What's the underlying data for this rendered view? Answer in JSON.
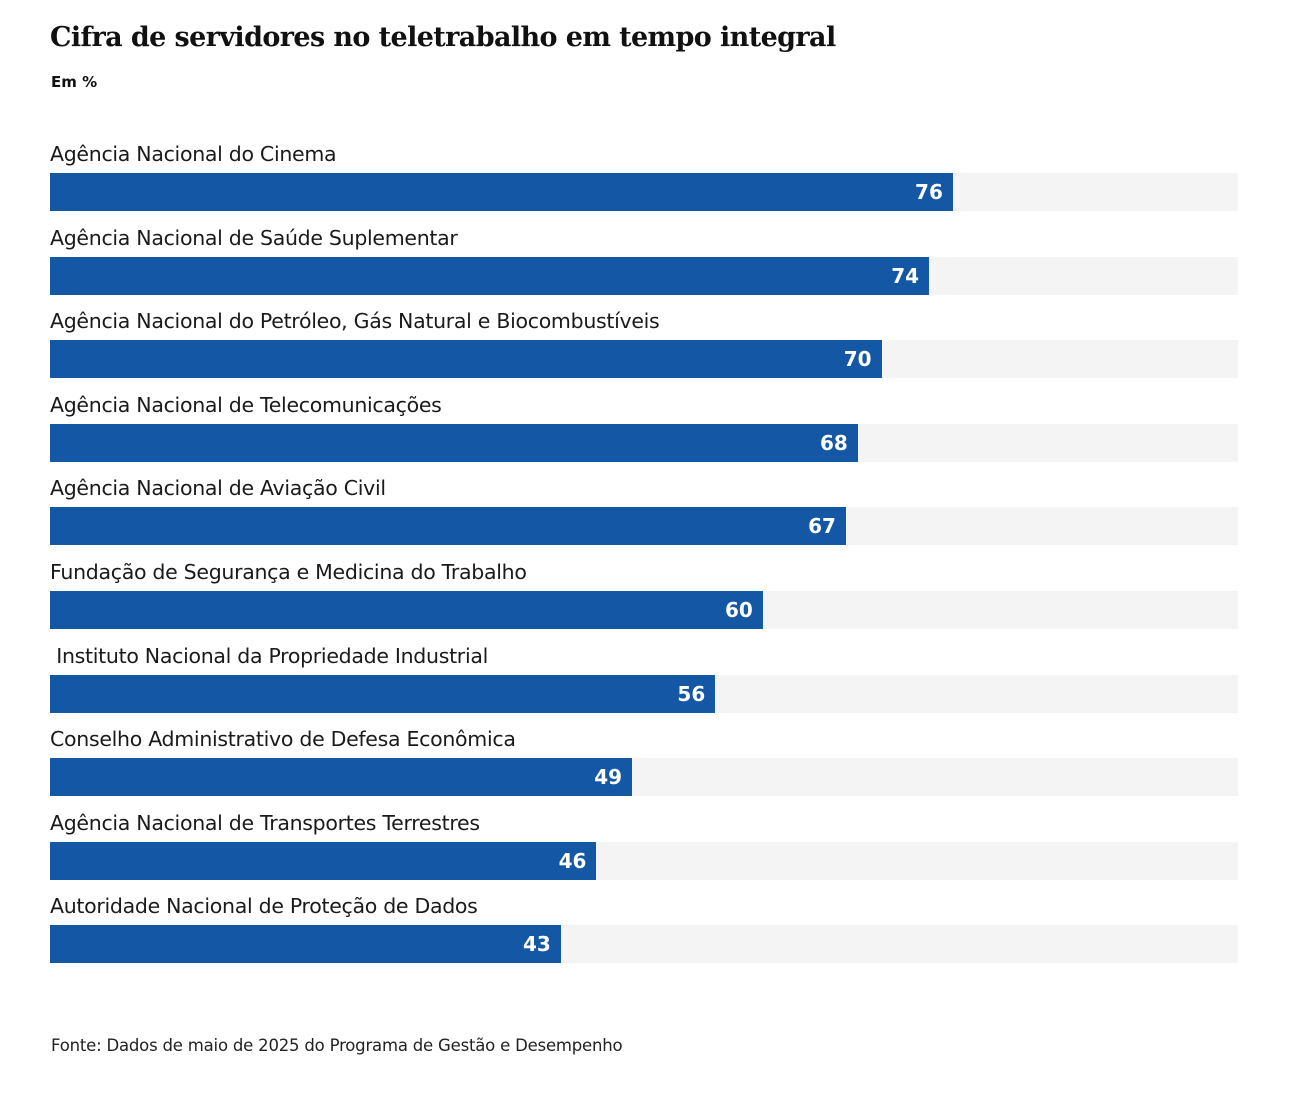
{
  "chart_data": {
    "type": "bar",
    "orientation": "horizontal",
    "title": "Cifra de servidores no teletrabalho em tempo integral",
    "subtitle": "Em %",
    "categories": [
      "Agência Nacional do Cinema",
      "Agência Nacional de Saúde Suplementar",
      "Agência Nacional do Petróleo, Gás Natural e Biocombustíveis",
      "Agência Nacional de Telecomunicações",
      "Agência Nacional de Aviação Civil",
      "Fundação de Segurança e Medicina do Trabalho",
      " Instituto Nacional da Propriedade Industrial",
      "Conselho Administrativo de Defesa Econômica",
      "Agência Nacional de Transportes Terrestres",
      "Autoridade Nacional de Proteção de Dados"
    ],
    "values": [
      76,
      74,
      70,
      68,
      67,
      60,
      56,
      49,
      46,
      43
    ],
    "xlim": [
      0,
      100
    ],
    "grid": false,
    "source": "Fonte: Dados de maio de 2025 do Programa de Gestão e Desempenho"
  },
  "colors": {
    "bar": "#1457a4",
    "track": "#f4f4f4",
    "value_text": "#ffffff"
  }
}
